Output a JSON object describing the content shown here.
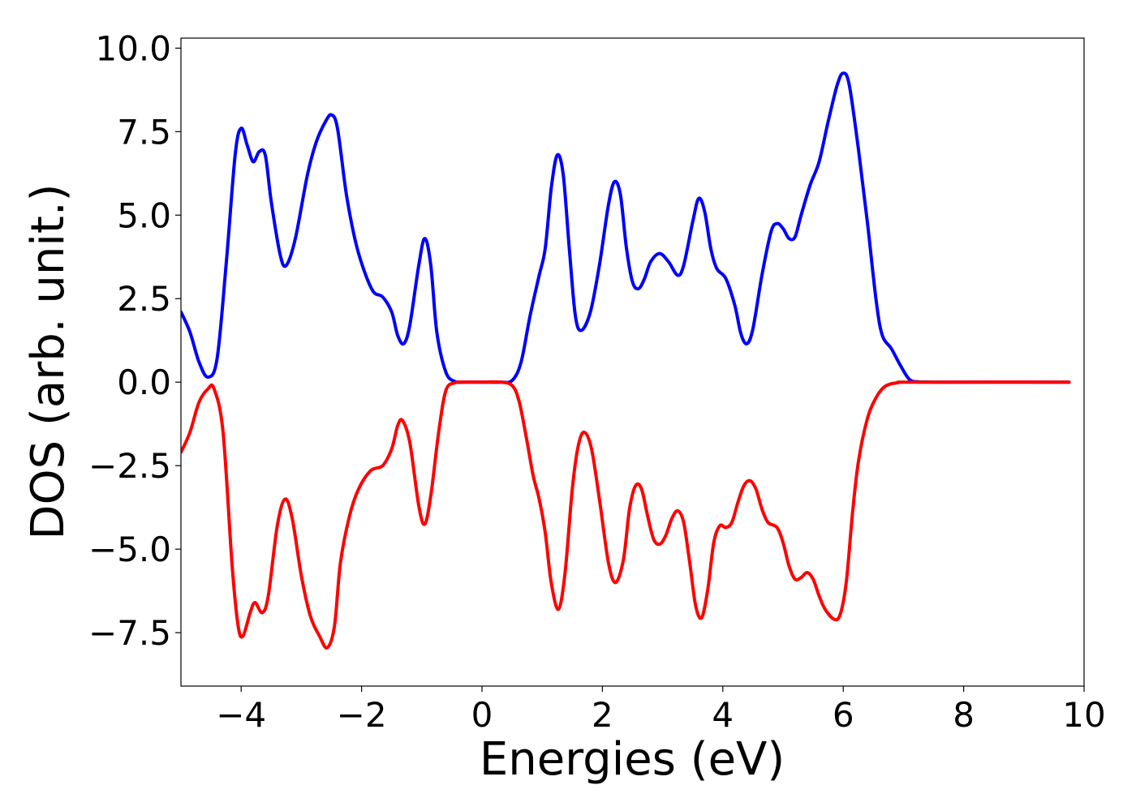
{
  "chart_data": {
    "type": "line",
    "xlabel": "Energies (eV)",
    "ylabel": "DOS (arb. unit.)",
    "xlim": [
      -5,
      10
    ],
    "ylim": [
      -9.1,
      10.3
    ],
    "grid": false,
    "xticks": [
      -4,
      -2,
      0,
      2,
      4,
      6,
      8,
      10
    ],
    "xtick_labels": [
      "−4",
      "−2",
      "0",
      "2",
      "4",
      "6",
      "8",
      "10"
    ],
    "yticks": [
      -7.5,
      -5.0,
      -2.5,
      0.0,
      2.5,
      5.0,
      7.5,
      10.0
    ],
    "ytick_labels": [
      "−7.5",
      "−5.0",
      "−2.5",
      "0.0",
      "2.5",
      "5.0",
      "7.5",
      "10.0"
    ],
    "series": [
      {
        "color": "#0000ff",
        "points": [
          [
            -5.0,
            2.1
          ],
          [
            -4.85,
            1.5
          ],
          [
            -4.7,
            0.6
          ],
          [
            -4.55,
            0.15
          ],
          [
            -4.4,
            0.7
          ],
          [
            -4.25,
            3.5
          ],
          [
            -4.1,
            6.8
          ],
          [
            -4.0,
            7.6
          ],
          [
            -3.9,
            7.1
          ],
          [
            -3.8,
            6.6
          ],
          [
            -3.7,
            6.9
          ],
          [
            -3.6,
            6.8
          ],
          [
            -3.5,
            5.4
          ],
          [
            -3.35,
            3.8
          ],
          [
            -3.25,
            3.5
          ],
          [
            -3.1,
            4.3
          ],
          [
            -2.9,
            6.2
          ],
          [
            -2.75,
            7.2
          ],
          [
            -2.6,
            7.8
          ],
          [
            -2.5,
            8.0
          ],
          [
            -2.4,
            7.6
          ],
          [
            -2.25,
            5.6
          ],
          [
            -2.1,
            4.2
          ],
          [
            -1.95,
            3.3
          ],
          [
            -1.8,
            2.7
          ],
          [
            -1.65,
            2.55
          ],
          [
            -1.5,
            2.1
          ],
          [
            -1.4,
            1.4
          ],
          [
            -1.3,
            1.15
          ],
          [
            -1.2,
            1.7
          ],
          [
            -1.05,
            3.5
          ],
          [
            -0.95,
            4.3
          ],
          [
            -0.85,
            3.5
          ],
          [
            -0.75,
            1.5
          ],
          [
            -0.6,
            0.3
          ],
          [
            -0.45,
            0.02
          ],
          [
            -0.3,
            0.0
          ],
          [
            0.0,
            0.0
          ],
          [
            0.3,
            0.0
          ],
          [
            0.5,
            0.05
          ],
          [
            0.65,
            0.6
          ],
          [
            0.8,
            2.0
          ],
          [
            0.95,
            3.2
          ],
          [
            1.05,
            4.0
          ],
          [
            1.15,
            5.8
          ],
          [
            1.25,
            6.8
          ],
          [
            1.35,
            6.2
          ],
          [
            1.45,
            4.0
          ],
          [
            1.55,
            2.0
          ],
          [
            1.65,
            1.55
          ],
          [
            1.8,
            2.1
          ],
          [
            1.95,
            3.5
          ],
          [
            2.1,
            5.3
          ],
          [
            2.2,
            6.0
          ],
          [
            2.3,
            5.6
          ],
          [
            2.4,
            4.0
          ],
          [
            2.5,
            3.0
          ],
          [
            2.6,
            2.8
          ],
          [
            2.7,
            3.1
          ],
          [
            2.8,
            3.6
          ],
          [
            2.95,
            3.85
          ],
          [
            3.1,
            3.6
          ],
          [
            3.25,
            3.2
          ],
          [
            3.35,
            3.5
          ],
          [
            3.5,
            4.8
          ],
          [
            3.6,
            5.5
          ],
          [
            3.7,
            5.1
          ],
          [
            3.8,
            4.0
          ],
          [
            3.9,
            3.4
          ],
          [
            4.05,
            3.1
          ],
          [
            4.2,
            2.3
          ],
          [
            4.3,
            1.45
          ],
          [
            4.4,
            1.15
          ],
          [
            4.5,
            1.6
          ],
          [
            4.65,
            3.2
          ],
          [
            4.8,
            4.5
          ],
          [
            4.9,
            4.75
          ],
          [
            5.0,
            4.6
          ],
          [
            5.1,
            4.3
          ],
          [
            5.2,
            4.35
          ],
          [
            5.3,
            5.0
          ],
          [
            5.45,
            5.9
          ],
          [
            5.6,
            6.6
          ],
          [
            5.75,
            7.8
          ],
          [
            5.9,
            8.9
          ],
          [
            6.0,
            9.25
          ],
          [
            6.1,
            8.9
          ],
          [
            6.25,
            7.0
          ],
          [
            6.4,
            4.8
          ],
          [
            6.55,
            2.4
          ],
          [
            6.65,
            1.4
          ],
          [
            6.8,
            1.0
          ],
          [
            6.95,
            0.5
          ],
          [
            7.1,
            0.08
          ],
          [
            7.25,
            0.01
          ],
          [
            7.5,
            0.0
          ],
          [
            9.75,
            0.0
          ]
        ]
      },
      {
        "color": "#ff0000",
        "points": [
          [
            -5.0,
            -2.1
          ],
          [
            -4.85,
            -1.5
          ],
          [
            -4.7,
            -0.6
          ],
          [
            -4.55,
            -0.2
          ],
          [
            -4.45,
            -0.2
          ],
          [
            -4.3,
            -1.5
          ],
          [
            -4.15,
            -5.5
          ],
          [
            -4.05,
            -7.3
          ],
          [
            -3.97,
            -7.6
          ],
          [
            -3.85,
            -6.9
          ],
          [
            -3.77,
            -6.6
          ],
          [
            -3.65,
            -6.9
          ],
          [
            -3.55,
            -6.4
          ],
          [
            -3.4,
            -4.3
          ],
          [
            -3.27,
            -3.5
          ],
          [
            -3.15,
            -4.1
          ],
          [
            -3.0,
            -5.8
          ],
          [
            -2.85,
            -7.0
          ],
          [
            -2.7,
            -7.6
          ],
          [
            -2.57,
            -7.95
          ],
          [
            -2.45,
            -7.3
          ],
          [
            -2.35,
            -5.4
          ],
          [
            -2.2,
            -4.0
          ],
          [
            -2.05,
            -3.2
          ],
          [
            -1.85,
            -2.65
          ],
          [
            -1.65,
            -2.5
          ],
          [
            -1.5,
            -2.0
          ],
          [
            -1.4,
            -1.3
          ],
          [
            -1.32,
            -1.15
          ],
          [
            -1.2,
            -1.8
          ],
          [
            -1.05,
            -3.7
          ],
          [
            -0.95,
            -4.25
          ],
          [
            -0.85,
            -3.4
          ],
          [
            -0.72,
            -1.5
          ],
          [
            -0.6,
            -0.25
          ],
          [
            -0.45,
            -0.02
          ],
          [
            -0.3,
            0.0
          ],
          [
            0.0,
            0.0
          ],
          [
            0.3,
            0.0
          ],
          [
            0.5,
            -0.1
          ],
          [
            0.62,
            -0.6
          ],
          [
            0.75,
            -1.8
          ],
          [
            0.85,
            -2.8
          ],
          [
            0.95,
            -3.5
          ],
          [
            1.05,
            -4.5
          ],
          [
            1.15,
            -6.0
          ],
          [
            1.27,
            -6.8
          ],
          [
            1.38,
            -5.7
          ],
          [
            1.5,
            -3.2
          ],
          [
            1.6,
            -1.9
          ],
          [
            1.7,
            -1.5
          ],
          [
            1.82,
            -2.0
          ],
          [
            1.95,
            -3.5
          ],
          [
            2.1,
            -5.4
          ],
          [
            2.22,
            -6.0
          ],
          [
            2.35,
            -5.3
          ],
          [
            2.45,
            -3.8
          ],
          [
            2.55,
            -3.1
          ],
          [
            2.65,
            -3.2
          ],
          [
            2.75,
            -4.0
          ],
          [
            2.85,
            -4.7
          ],
          [
            2.95,
            -4.85
          ],
          [
            3.05,
            -4.6
          ],
          [
            3.15,
            -4.1
          ],
          [
            3.25,
            -3.85
          ],
          [
            3.35,
            -4.2
          ],
          [
            3.45,
            -5.4
          ],
          [
            3.55,
            -6.7
          ],
          [
            3.65,
            -7.05
          ],
          [
            3.75,
            -6.2
          ],
          [
            3.85,
            -4.8
          ],
          [
            3.95,
            -4.3
          ],
          [
            4.05,
            -4.35
          ],
          [
            4.15,
            -4.2
          ],
          [
            4.25,
            -3.6
          ],
          [
            4.35,
            -3.1
          ],
          [
            4.45,
            -2.95
          ],
          [
            4.55,
            -3.2
          ],
          [
            4.65,
            -3.8
          ],
          [
            4.75,
            -4.2
          ],
          [
            4.9,
            -4.35
          ],
          [
            5.0,
            -4.8
          ],
          [
            5.1,
            -5.5
          ],
          [
            5.2,
            -5.9
          ],
          [
            5.3,
            -5.85
          ],
          [
            5.4,
            -5.7
          ],
          [
            5.5,
            -5.9
          ],
          [
            5.6,
            -6.4
          ],
          [
            5.7,
            -6.8
          ],
          [
            5.85,
            -7.1
          ],
          [
            5.95,
            -6.95
          ],
          [
            6.05,
            -6.0
          ],
          [
            6.15,
            -4.0
          ],
          [
            6.25,
            -2.4
          ],
          [
            6.4,
            -1.1
          ],
          [
            6.55,
            -0.45
          ],
          [
            6.7,
            -0.12
          ],
          [
            6.9,
            -0.02
          ],
          [
            7.2,
            0.0
          ],
          [
            9.75,
            0.0
          ]
        ]
      }
    ]
  }
}
